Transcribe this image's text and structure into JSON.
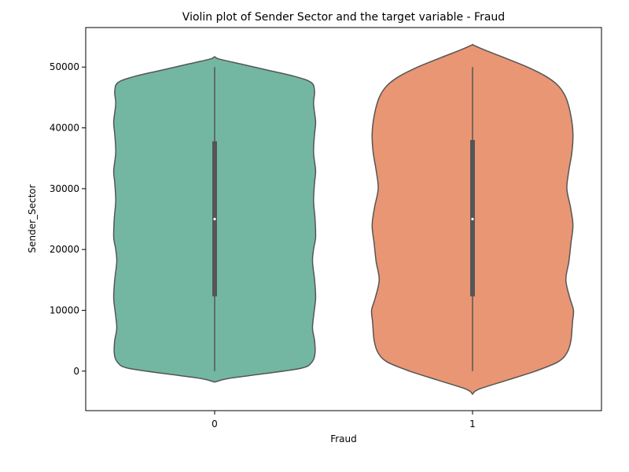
{
  "chart_data": {
    "type": "violin",
    "title": "Violin plot of Sender Sector and the target variable - Fraud",
    "xlabel": "Fraud",
    "ylabel": "Sender_Sector",
    "categories": [
      "0",
      "1"
    ],
    "ylim": [
      -6500,
      56500
    ],
    "yticks": [
      0,
      10000,
      20000,
      30000,
      40000,
      50000
    ],
    "ytick_labels": [
      "0",
      "10000",
      "20000",
      "30000",
      "40000",
      "50000"
    ],
    "colors": {
      "0": "#73b7a3",
      "1": "#e99674",
      "edge": "#555555"
    },
    "violins": [
      {
        "category": "0",
        "min": 0,
        "q1": 12300,
        "median": 25000,
        "q3": 37800,
        "max": 50000,
        "outline": [
          [
            -1800,
            0.0
          ],
          [
            -1200,
            0.14
          ],
          [
            -400,
            0.5
          ],
          [
            500,
            0.86
          ],
          [
            1500,
            0.96
          ],
          [
            3000,
            0.99
          ],
          [
            5000,
            0.985
          ],
          [
            7000,
            0.965
          ],
          [
            9000,
            0.975
          ],
          [
            12000,
            0.995
          ],
          [
            15000,
            0.985
          ],
          [
            18000,
            0.965
          ],
          [
            20000,
            0.975
          ],
          [
            22000,
            0.995
          ],
          [
            25000,
            0.99
          ],
          [
            28000,
            0.975
          ],
          [
            31000,
            0.985
          ],
          [
            33000,
            0.995
          ],
          [
            36000,
            0.975
          ],
          [
            39000,
            0.985
          ],
          [
            41000,
            0.995
          ],
          [
            44000,
            0.975
          ],
          [
            46000,
            0.985
          ],
          [
            47500,
            0.95
          ],
          [
            48500,
            0.78
          ],
          [
            49500,
            0.52
          ],
          [
            50500,
            0.26
          ],
          [
            51300,
            0.05
          ],
          [
            51700,
            0.0
          ]
        ]
      },
      {
        "category": "1",
        "min": 0,
        "q1": 12300,
        "median": 25000,
        "q3": 38000,
        "max": 50000,
        "outline": [
          [
            -3800,
            0.0
          ],
          [
            -3000,
            0.06
          ],
          [
            -1500,
            0.34
          ],
          [
            0,
            0.62
          ],
          [
            1500,
            0.84
          ],
          [
            3000,
            0.93
          ],
          [
            5000,
            0.97
          ],
          [
            8000,
            0.985
          ],
          [
            10000,
            0.995
          ],
          [
            12000,
            0.96
          ],
          [
            15000,
            0.92
          ],
          [
            18000,
            0.95
          ],
          [
            21000,
            0.97
          ],
          [
            24000,
            0.99
          ],
          [
            27000,
            0.965
          ],
          [
            30000,
            0.93
          ],
          [
            33000,
            0.95
          ],
          [
            36000,
            0.98
          ],
          [
            39000,
            0.99
          ],
          [
            42000,
            0.97
          ],
          [
            45000,
            0.92
          ],
          [
            47000,
            0.84
          ],
          [
            48500,
            0.72
          ],
          [
            50000,
            0.54
          ],
          [
            51500,
            0.32
          ],
          [
            52800,
            0.12
          ],
          [
            53600,
            0.01
          ],
          [
            53700,
            0.0
          ]
        ]
      }
    ]
  }
}
